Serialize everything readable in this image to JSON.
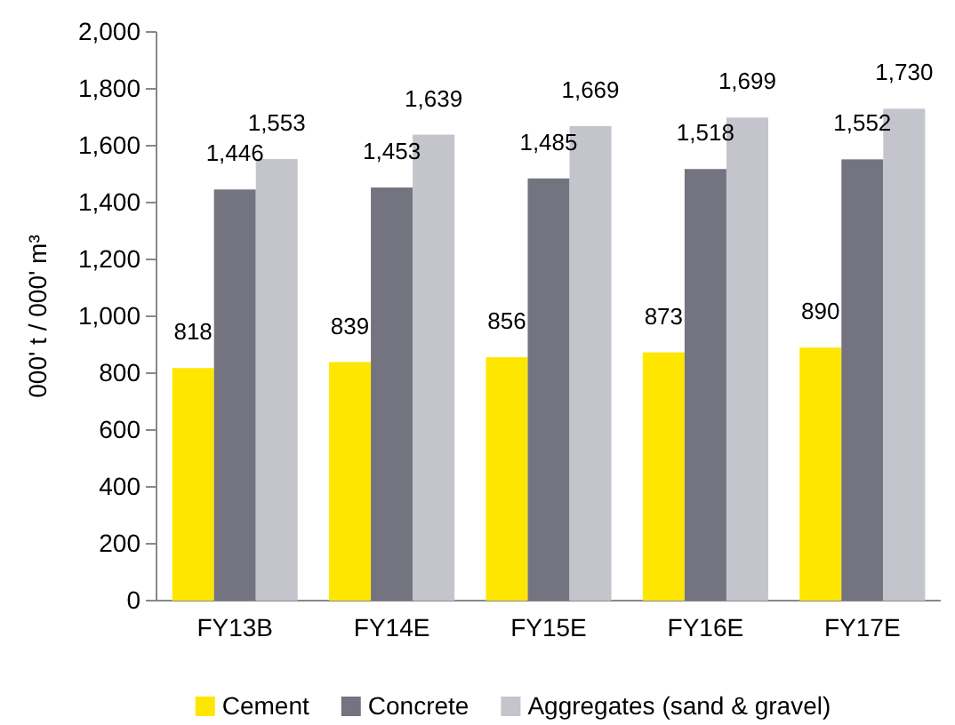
{
  "chart_data": {
    "type": "bar",
    "ylabel": "000' t / 000' m³",
    "categories": [
      "FY13B",
      "FY14E",
      "FY15E",
      "FY16E",
      "FY17E"
    ],
    "series": [
      {
        "name": "Cement",
        "color": "#ffe600",
        "values": [
          818,
          839,
          856,
          873,
          890
        ],
        "value_labels": [
          "818",
          "839",
          "856",
          "873",
          "890"
        ]
      },
      {
        "name": "Concrete",
        "color": "#747480",
        "values": [
          1446,
          1453,
          1485,
          1518,
          1552
        ],
        "value_labels": [
          "1,446",
          "1,453",
          "1,485",
          "1,518",
          "1,552"
        ]
      },
      {
        "name": "Aggregates (sand & gravel)",
        "color": "#c4c4cd",
        "values": [
          1553,
          1639,
          1669,
          1699,
          1730
        ],
        "value_labels": [
          "1,553",
          "1,639",
          "1,669",
          "1,699",
          "1,730"
        ]
      }
    ],
    "ylim": [
      0,
      2000
    ],
    "yticks": [
      {
        "value": 0,
        "label": "0"
      },
      {
        "value": 200,
        "label": "200"
      },
      {
        "value": 400,
        "label": "400"
      },
      {
        "value": 600,
        "label": "600"
      },
      {
        "value": 800,
        "label": "800"
      },
      {
        "value": 1000,
        "label": "1,000"
      },
      {
        "value": 1200,
        "label": "1,200"
      },
      {
        "value": 1400,
        "label": "1,400"
      },
      {
        "value": 1600,
        "label": "1,600"
      },
      {
        "value": 1800,
        "label": "1,800"
      },
      {
        "value": 2000,
        "label": "2,000"
      }
    ],
    "grid": false,
    "legend": "bottom"
  }
}
